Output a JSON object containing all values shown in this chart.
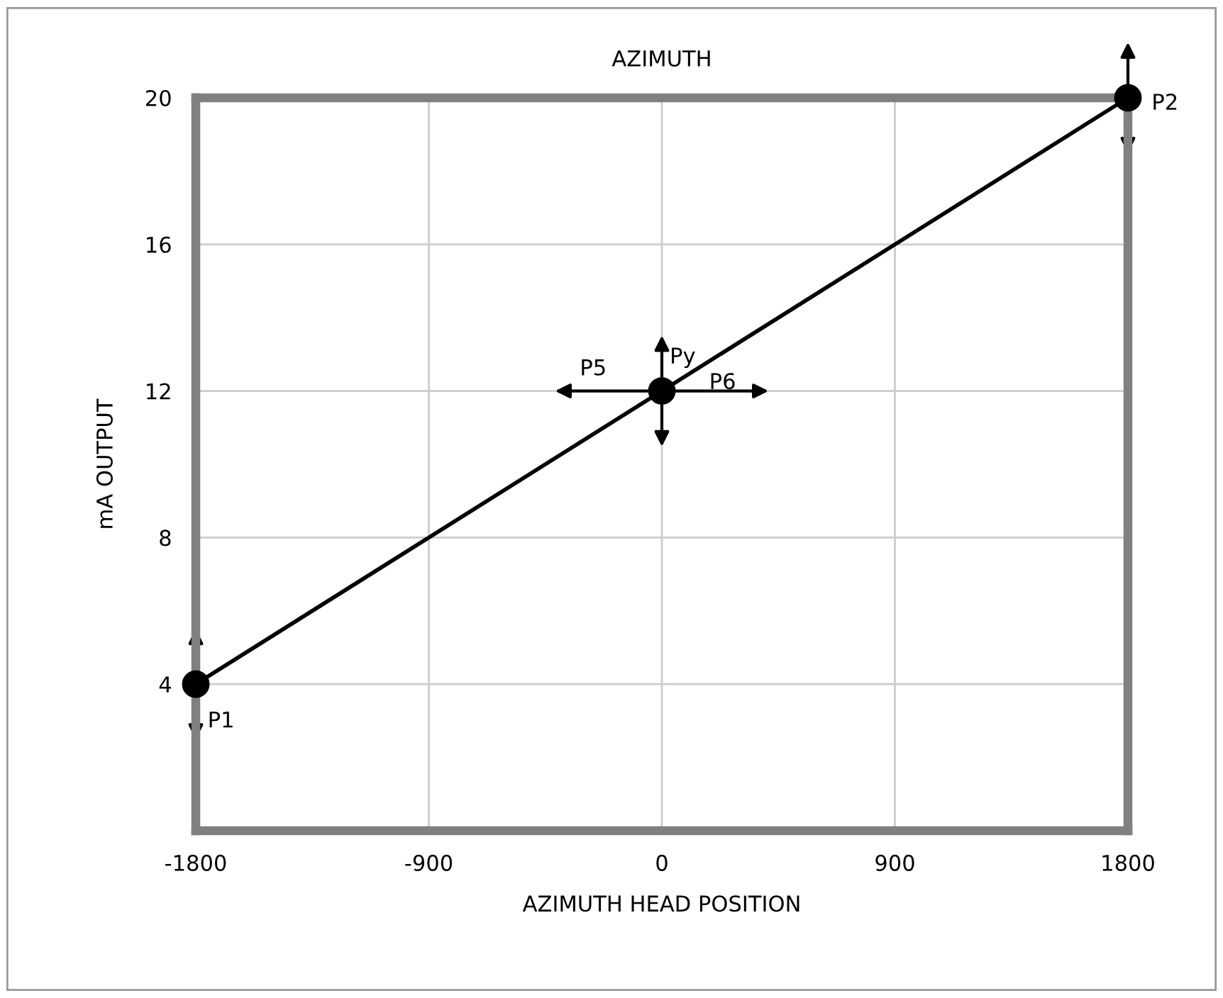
{
  "chart_data": {
    "type": "line",
    "title": "AZIMUTH",
    "xlabel": "AZIMUTH HEAD POSITION",
    "ylabel": "mA OUTPUT",
    "x": [
      -1800,
      0,
      1800
    ],
    "series": [
      {
        "color": "#000000",
        "values": [
          4,
          12,
          20
        ]
      }
    ],
    "marker": "circle",
    "line_style": "solid",
    "xlim": [
      -1800,
      1800
    ],
    "xticks": [
      -1800,
      -900,
      0,
      900,
      1800
    ],
    "ylim": [
      0,
      20
    ],
    "yticks": [
      4,
      8,
      12,
      16,
      20
    ],
    "grid": true,
    "annotations": [
      {
        "text": "P1",
        "x": -1800,
        "y": 4
      },
      {
        "text": "P2",
        "x": 1800,
        "y": 20
      },
      {
        "text": "Py",
        "x": 0,
        "y": 12
      },
      {
        "text": "P5",
        "x": 0,
        "y": 12
      },
      {
        "text": "P6",
        "x": 0,
        "y": 12
      }
    ]
  }
}
